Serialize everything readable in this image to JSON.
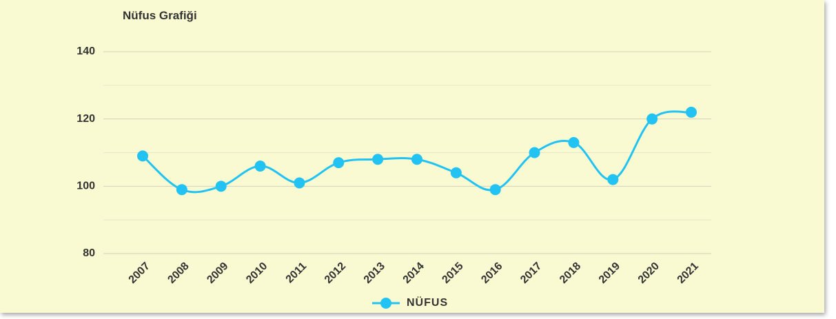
{
  "chart_data": {
    "type": "line",
    "title": "Nüfus Grafiği",
    "categories": [
      "2007",
      "2008",
      "2009",
      "2010",
      "2011",
      "2012",
      "2013",
      "2014",
      "2015",
      "2016",
      "2017",
      "2018",
      "2019",
      "2020",
      "2021"
    ],
    "series": [
      {
        "name": "NÜFUS",
        "color": "#22c3f2",
        "values": [
          109,
          99,
          100,
          106,
          101,
          107,
          108,
          108,
          104,
          99,
          110,
          113,
          102,
          120,
          122
        ]
      }
    ],
    "ylim": [
      80,
      140
    ],
    "yticks": [
      80,
      100,
      120,
      140
    ],
    "minor_yticks": [
      90,
      110,
      130
    ],
    "grid": true,
    "legend": "bottom"
  }
}
